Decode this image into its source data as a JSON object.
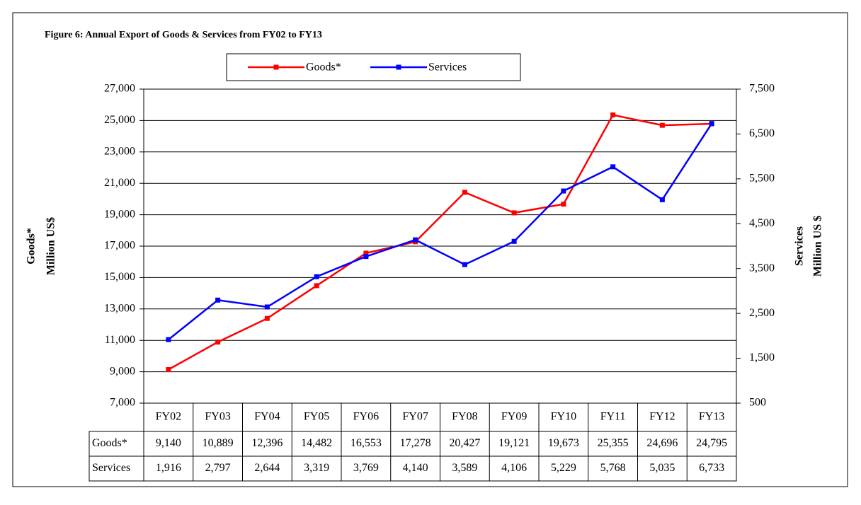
{
  "chart_data": {
    "type": "line",
    "title": "Figure 6:  Annual Export of Goods & Services from FY02 to FY13",
    "ylabel": [
      "Goods*",
      "Million US$"
    ],
    "y2label": [
      "Services",
      "Million US $"
    ],
    "categories": [
      "FY02",
      "FY03",
      "FY04",
      "FY05",
      "FY06",
      "FY07",
      "FY08",
      "FY09",
      "FY10",
      "FY11",
      "FY12",
      "FY13"
    ],
    "series": [
      {
        "name": "Goods*",
        "color": "#ff0000",
        "axis": "y",
        "values": [
          9140,
          10889,
          12396,
          14482,
          16553,
          17278,
          20427,
          19121,
          19673,
          25355,
          24696,
          24795
        ],
        "value_labels": [
          "9,140",
          "10,889",
          "12,396",
          "14,482",
          "16,553",
          "17,278",
          "20,427",
          "19,121",
          "19,673",
          "25,355",
          "24,696",
          "24,795"
        ]
      },
      {
        "name": "Services",
        "color": "#0000ff",
        "axis": "y2",
        "values": [
          1916,
          2797,
          2644,
          3319,
          3769,
          4140,
          3589,
          4106,
          5229,
          5768,
          5035,
          6733
        ],
        "value_labels": [
          "1,916",
          "2,797",
          "2,644",
          "3,319",
          "3,769",
          "4,140",
          "3,589",
          "4,106",
          "5,229",
          "5,768",
          "5,035",
          "6,733"
        ]
      }
    ],
    "ylim": [
      7000,
      27000
    ],
    "yticks": [
      {
        "value": 7000,
        "label": "7,000"
      },
      {
        "value": 9000,
        "label": "9,000"
      },
      {
        "value": 11000,
        "label": "11,000"
      },
      {
        "value": 13000,
        "label": "13,000"
      },
      {
        "value": 15000,
        "label": "15,000"
      },
      {
        "value": 17000,
        "label": "17,000"
      },
      {
        "value": 19000,
        "label": "19,000"
      },
      {
        "value": 21000,
        "label": "21,000"
      },
      {
        "value": 23000,
        "label": "23,000"
      },
      {
        "value": 25000,
        "label": "25,000"
      },
      {
        "value": 27000,
        "label": "27,000"
      }
    ],
    "y2lim": [
      500,
      7500
    ],
    "y2ticks": [
      500,
      {
        "value": 1500,
        "label": "1,500"
      },
      {
        "value": 2500,
        "label": "2,500"
      },
      {
        "value": 3500,
        "label": "3,500"
      },
      {
        "value": 4500,
        "label": "4,500"
      },
      {
        "value": 5500,
        "label": "5,500"
      },
      {
        "value": 6500,
        "label": "6,500"
      },
      {
        "value": 7500,
        "label": "7,500"
      }
    ],
    "grid": true,
    "legend": "top"
  }
}
